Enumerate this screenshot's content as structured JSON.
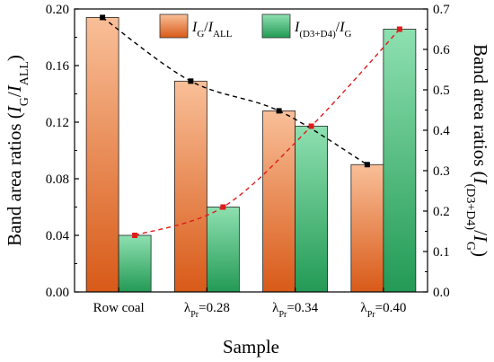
{
  "chart_data": {
    "type": "bar",
    "xlabel": "Sample",
    "ylabel_left": {
      "pre": "Band area ratios (",
      "I": "I",
      "G_sub": "G",
      "slash": "/",
      "I2": "I",
      "ALL_sub": "ALL",
      "post": ")"
    },
    "ylabel_right": {
      "pre": "Band area ratios (",
      "I": "I",
      "sub1": "(D3+D4)",
      "slash": "/",
      "I2": "I",
      "sub2": "G",
      "post": ")"
    },
    "categories": [
      {
        "base": "Row coal",
        "sub": "",
        "rest": ""
      },
      {
        "base": "λ",
        "sub": "Pr",
        "rest": "=0.28"
      },
      {
        "base": "λ",
        "sub": "Pr",
        "rest": "=0.34"
      },
      {
        "base": "λ",
        "sub": "Pr",
        "rest": "=0.40"
      }
    ],
    "series": [
      {
        "key": "IG_IALL",
        "axis": "left",
        "legend": {
          "I": "I",
          "sub1": "G",
          "slash": "/",
          "I2": "I",
          "sub2": "ALL"
        },
        "values": [
          0.194,
          0.149,
          0.128,
          0.09
        ],
        "line_color": "#000000",
        "gradient_top": "#f9bf98",
        "gradient_bottom": "#d85a18"
      },
      {
        "key": "ID3D4_IG",
        "axis": "right",
        "legend": {
          "I": "I",
          "sub1": "(D3+D4)",
          "slash": "/",
          "I2": "I",
          "sub2": "G"
        },
        "values": [
          0.14,
          0.21,
          0.41,
          0.65
        ],
        "line_color": "#e11b1b",
        "gradient_top": "#8ee0b0",
        "gradient_bottom": "#239a55"
      }
    ],
    "ylim_left": [
      0,
      0.2
    ],
    "yticks_left": [
      "0.00",
      "0.04",
      "0.08",
      "0.12",
      "0.16",
      "0.20"
    ],
    "ylim_right": [
      0,
      0.7
    ],
    "yticks_right": [
      "0.0",
      "0.1",
      "0.2",
      "0.3",
      "0.4",
      "0.5",
      "0.6",
      "0.7"
    ],
    "grid": false,
    "legend_position": "top"
  }
}
